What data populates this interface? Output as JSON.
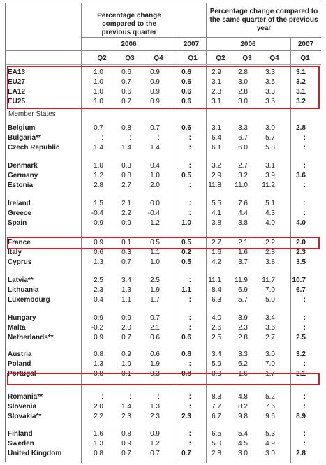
{
  "header": {
    "group1_title": "Percentage change compared to the previous quarter",
    "group2_title": "Percentage change compared to the same quarter of the previous year",
    "year_2006": "2006",
    "year_2007": "2007",
    "quarters": [
      "Q2",
      "Q3",
      "Q4",
      "Q1"
    ]
  },
  "member_states_label": "Member States",
  "aggregates": [
    {
      "name": "EA13",
      "values": [
        "1.0",
        "0.6",
        "0.9",
        "0.6",
        "2.9",
        "2.8",
        "3.3",
        "3.1"
      ]
    },
    {
      "name": "EU27",
      "values": [
        "1.0",
        "0.7",
        "0.9",
        "0.6",
        "3.1",
        "3.0",
        "3.5",
        "3.2"
      ]
    },
    {
      "name": "EA12",
      "values": [
        "1.0",
        "0.6",
        "0.9",
        "0.6",
        "2.8",
        "2.8",
        "3.3",
        "3.1"
      ]
    },
    {
      "name": "EU25",
      "values": [
        "1.0",
        "0.7",
        "0.9",
        "0.6",
        "3.1",
        "3.0",
        "3.5",
        "3.2"
      ]
    }
  ],
  "countries": [
    {
      "name": "Belgium",
      "values": [
        "0.7",
        "0.8",
        "0.7",
        "0.6",
        "3.1",
        "3.3",
        "3.0",
        "2.8"
      ]
    },
    {
      "name": "Bulgaria**",
      "values": [
        ":",
        ":",
        ":",
        ":",
        "6.4",
        "6.7",
        "5.7",
        ":"
      ]
    },
    {
      "name": "Czech Republic",
      "values": [
        "1.4",
        "1.4",
        "1.4",
        ":",
        "6.1",
        "6.0",
        "5.8",
        ":"
      ]
    },
    {
      "name": "Denmark",
      "values": [
        "1.0",
        "0.3",
        "0.4",
        ":",
        "3.2",
        "2.7",
        "3.1",
        ":"
      ]
    },
    {
      "name": "Germany",
      "values": [
        "1.2",
        "0.8",
        "1.0",
        "0.5",
        "2.9",
        "3.2",
        "3.9",
        "3.6"
      ]
    },
    {
      "name": "Estonia",
      "values": [
        "2.8",
        "2.7",
        "2.0",
        ":",
        "11.8",
        "11.0",
        "11.2",
        ":"
      ]
    },
    {
      "name": "Ireland",
      "values": [
        "1.5",
        "2.1",
        "0.0",
        ":",
        "5.5",
        "7.6",
        "5.1",
        ":"
      ]
    },
    {
      "name": "Greece",
      "values": [
        "-0.4",
        "2.2",
        "-0.4",
        ":",
        "4.1",
        "4.4",
        "4.3",
        ":"
      ]
    },
    {
      "name": "Spain",
      "values": [
        "0.9",
        "0.9",
        "1.2",
        "1.0",
        "3.8",
        "3.8",
        "4.0",
        "4.0"
      ]
    },
    {
      "name": "France",
      "values": [
        "0.9",
        "0.1",
        "0.5",
        "0.5",
        "2.7",
        "2.1",
        "2.2",
        "2.0"
      ]
    },
    {
      "name": "Italy",
      "values": [
        "0.6",
        "0.3",
        "1.1",
        "0.2",
        "1.6",
        "1.6",
        "2.8",
        "2.3"
      ]
    },
    {
      "name": "Cyprus",
      "values": [
        "1.3",
        "0.7",
        "1.0",
        "0.5",
        "4.2",
        "3.7",
        "3.8",
        "3.5"
      ]
    },
    {
      "name": "Latvia**",
      "values": [
        "2.5",
        "3.4",
        "2.5",
        ":",
        "11.1",
        "11.9",
        "11.7",
        "10.7"
      ]
    },
    {
      "name": "Lithuania",
      "values": [
        "2.3",
        "1.3",
        "1.9",
        "1.1",
        "8.4",
        "6.9",
        "7.0",
        "6.7"
      ]
    },
    {
      "name": "Luxembourg",
      "values": [
        "0.4",
        "1.1",
        "1.7",
        ":",
        "6.3",
        "5.7",
        "5.0",
        ":"
      ]
    },
    {
      "name": "Hungary",
      "values": [
        "0.9",
        "0.9",
        "0.7",
        ":",
        "4.0",
        "3.9",
        "3.4",
        ":"
      ]
    },
    {
      "name": "Malta",
      "values": [
        "-0.2",
        "2.0",
        "2.1",
        ":",
        "2.6",
        "2.3",
        "3.6",
        ":"
      ]
    },
    {
      "name": "Netherlands**",
      "values": [
        "0.9",
        "0.7",
        "0.6",
        "0.6",
        "2.5",
        "2.8",
        "2.7",
        "2.5"
      ]
    },
    {
      "name": "Austria",
      "values": [
        "0.8",
        "0.9",
        "0.6",
        "0.8",
        "3.4",
        "3.3",
        "3.0",
        "3.2"
      ]
    },
    {
      "name": "Poland",
      "values": [
        "1.3",
        "1.9",
        "1.9",
        ":",
        "5.9",
        "6.2",
        "7.0",
        ":"
      ]
    },
    {
      "name": "Portugal",
      "values": [
        "0.8",
        "0.1",
        "0.3",
        "0.8",
        "0.9",
        "1.6",
        "1.7",
        "2.1"
      ]
    },
    {
      "name": "Romania**",
      "values": [
        ":",
        ":",
        ":",
        ":",
        "8.3",
        "4.8",
        "5.2",
        ":"
      ]
    },
    {
      "name": "Slovenia",
      "values": [
        "2.0",
        "1.4",
        "1.3",
        ":",
        "7.7",
        "8.2",
        "7.6",
        ":"
      ]
    },
    {
      "name": "Slovakia**",
      "values": [
        "2.2",
        "2.3",
        "2.3",
        "2.3",
        "6.7",
        "9.8",
        "9.6",
        "8.9"
      ]
    },
    {
      "name": "Finland",
      "values": [
        "1.6",
        "0.8",
        "0.9",
        ":",
        "6.5",
        "5.4",
        "5.3",
        ":"
      ]
    },
    {
      "name": "Sweden",
      "values": [
        "1.3",
        "0.9",
        "1.2",
        ":",
        "5.0",
        "4.5",
        "4.9",
        ":"
      ]
    },
    {
      "name": "United Kingdom",
      "values": [
        "0.8",
        "0.7",
        "0.7",
        "0.7",
        "2.8",
        "3.0",
        "3.0",
        "2.8"
      ]
    }
  ],
  "highlight_color": "#d0202a"
}
